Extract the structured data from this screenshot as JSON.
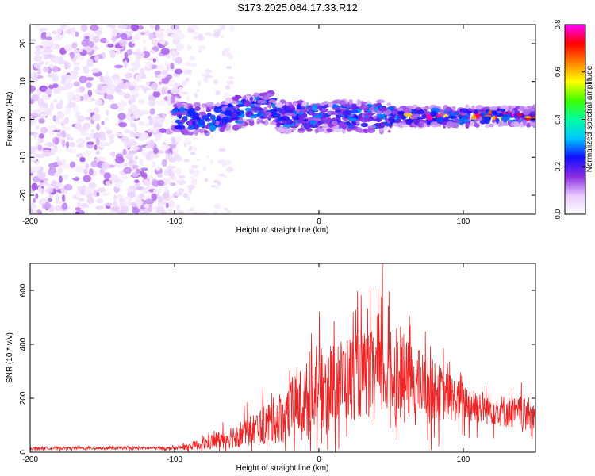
{
  "title": "S173.2025.084.17.33.R12",
  "chart_data": [
    {
      "type": "heatmap",
      "xlabel": "Height of straight line (km)",
      "ylabel": "Frequency (Hz)",
      "xlim": [
        -200,
        150
      ],
      "ylim": [
        -25,
        25
      ],
      "x_ticks": [
        -200,
        -100,
        0,
        100
      ],
      "y_ticks": [
        -20,
        -10,
        0,
        10,
        20
      ],
      "colorbar": {
        "label": "Normalized spectral amplitude",
        "range": [
          0,
          0.8
        ],
        "ticks": [
          "0.0",
          "0.2",
          "0.4",
          "0.6",
          "0.8"
        ],
        "colors": [
          "#ffffff",
          "#e6c8ff",
          "#8a2be2",
          "#1010ff",
          "#00c8ff",
          "#00ffa0",
          "#40ff00",
          "#ffff00",
          "#ff8000",
          "#ff0000",
          "#ff00ff"
        ]
      },
      "description_regions": [
        {
          "x": [
            -200,
            -100
          ],
          "freq": [
            -25,
            25
          ],
          "amplitude": "0.0-0.1"
        },
        {
          "x": [
            -100,
            150
          ],
          "freq": [
            -5,
            6
          ],
          "amplitude": "0.1-0.4"
        },
        {
          "x": [
            60,
            150
          ],
          "freq": [
            0,
            2
          ],
          "amplitude": "0.5-0.8"
        }
      ]
    },
    {
      "type": "line",
      "xlabel": "Height of straight line (km)",
      "ylabel": "SNR (10 * v/v)",
      "xlim": [
        -200,
        150
      ],
      "ylim": [
        0,
        700
      ],
      "x_ticks": [
        -200,
        -100,
        0,
        100
      ],
      "y_ticks": [
        0,
        200,
        400,
        600
      ],
      "color": "#ee2222",
      "envelope": {
        "x": [
          -200,
          -100,
          -90,
          -80,
          -70,
          -60,
          -50,
          -40,
          -30,
          -20,
          -10,
          0,
          10,
          20,
          30,
          40,
          50,
          60,
          70,
          80,
          90,
          100,
          110,
          120,
          130,
          140,
          150
        ],
        "base": [
          15,
          15,
          20,
          30,
          45,
          60,
          75,
          95,
          120,
          150,
          190,
          230,
          260,
          275,
          285,
          290,
          285,
          270,
          250,
          230,
          205,
          185,
          170,
          160,
          150,
          145,
          140
        ],
        "spread": [
          10,
          12,
          25,
          45,
          70,
          90,
          110,
          140,
          180,
          230,
          280,
          300,
          310,
          320,
          320,
          330,
          320,
          300,
          260,
          220,
          180,
          150,
          130,
          120,
          120,
          120,
          120
        ]
      },
      "peak": {
        "x": 44,
        "y": 700
      }
    }
  ]
}
